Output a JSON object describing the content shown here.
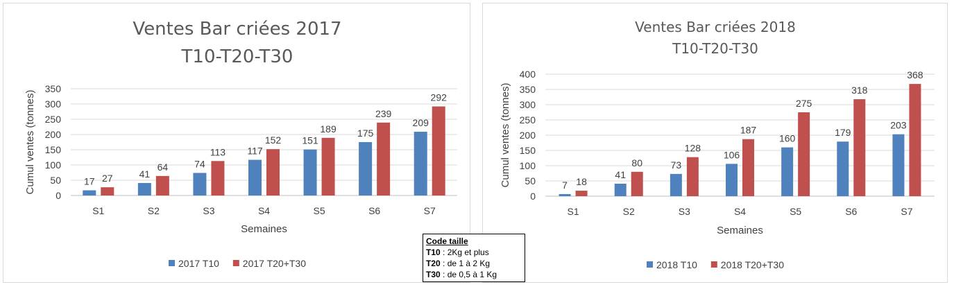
{
  "chart_data": [
    {
      "type": "bar",
      "title": "Ventes Bar criées 2017",
      "subtitle": "T10-T20-T30",
      "xlabel": "Semaines",
      "ylabel": "Cumul ventes (tonnes)",
      "categories": [
        "S1",
        "S2",
        "S3",
        "S4",
        "S5",
        "S6",
        "S7"
      ],
      "ylim": [
        0,
        350
      ],
      "yticks": [
        0,
        50,
        100,
        150,
        200,
        250,
        300,
        350
      ],
      "grid": true,
      "legend_position": "bottom",
      "series": [
        {
          "name": "2017 T10",
          "color": "#4F81BD",
          "values": [
            17,
            41,
            74,
            117,
            151,
            175,
            209
          ]
        },
        {
          "name": "2017 T20+T30",
          "color": "#C0504D",
          "values": [
            27,
            64,
            113,
            152,
            189,
            239,
            292
          ]
        }
      ]
    },
    {
      "type": "bar",
      "title": "Ventes Bar criées 2018",
      "subtitle": "T10-T20-T30",
      "xlabel": "Semaines",
      "ylabel": "Cumul ventes (tonnes)",
      "categories": [
        "S1",
        "S2",
        "S3",
        "S4",
        "S5",
        "S6",
        "S7"
      ],
      "ylim": [
        0,
        400
      ],
      "yticks": [
        0,
        50,
        100,
        150,
        200,
        250,
        300,
        350,
        400
      ],
      "grid": true,
      "legend_position": "bottom",
      "series": [
        {
          "name": "2018 T10",
          "color": "#4F81BD",
          "values": [
            7,
            41,
            73,
            106,
            160,
            179,
            203
          ]
        },
        {
          "name": "2018 T20+T30",
          "color": "#C0504D",
          "values": [
            18,
            80,
            128,
            187,
            275,
            318,
            368
          ]
        }
      ]
    }
  ],
  "code_taille": {
    "title": "Code taille",
    "rows": [
      {
        "code": "T10",
        "text": " : 2Kg et plus"
      },
      {
        "code": "T20",
        "text": " : de 1 à 2 Kg"
      },
      {
        "code": "T30",
        "text": " : de 0,5 à 1 Kg"
      }
    ]
  }
}
